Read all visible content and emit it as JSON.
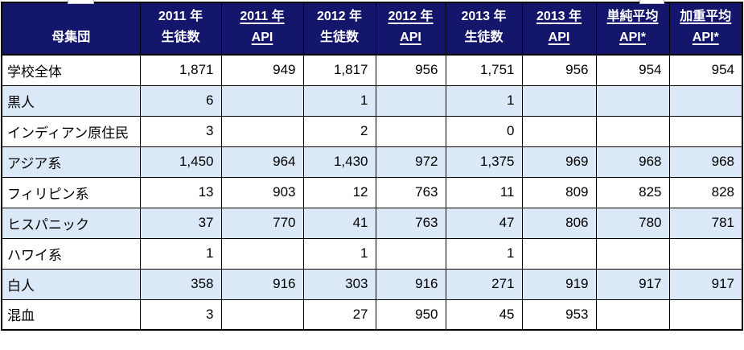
{
  "table": {
    "colors": {
      "header_bg": "#14166B",
      "header_text": "#FFFFFF",
      "shaded_row_bg": "#DBE8F7",
      "border": "#000000",
      "body_text": "#000000"
    },
    "columns": [
      {
        "id": "group",
        "label_lines": [
          "母集団"
        ],
        "underline": false
      },
      {
        "id": "students-2011",
        "label_lines": [
          "2011 年",
          "生徒数"
        ],
        "underline": false
      },
      {
        "id": "api-2011",
        "label_lines": [
          "2011 年",
          "API"
        ],
        "underline": true
      },
      {
        "id": "students-2012",
        "label_lines": [
          "2012 年",
          "生徒数"
        ],
        "underline": false
      },
      {
        "id": "api-2012",
        "label_lines": [
          "2012 年",
          "API"
        ],
        "underline": true
      },
      {
        "id": "students-2013",
        "label_lines": [
          "2013 年",
          "生徒数"
        ],
        "underline": false
      },
      {
        "id": "api-2013",
        "label_lines": [
          "2013 年",
          "API"
        ],
        "underline": true
      },
      {
        "id": "api-simple-avg",
        "label_lines": [
          "単純平均",
          "API*"
        ],
        "underline": true
      },
      {
        "id": "api-weighted-avg",
        "label_lines": [
          "加重平均",
          "API*"
        ],
        "underline": true
      }
    ],
    "rows": [
      {
        "group": "学校全体",
        "shaded": false,
        "values": [
          "1,871",
          "949",
          "1,817",
          "956",
          "1,751",
          "956",
          "954",
          "954"
        ]
      },
      {
        "group": "黒人",
        "shaded": true,
        "values": [
          "6",
          "",
          "1",
          "",
          "1",
          "",
          "",
          ""
        ]
      },
      {
        "group": "インディアン原住民",
        "shaded": false,
        "values": [
          "3",
          "",
          "2",
          "",
          "0",
          "",
          "",
          ""
        ]
      },
      {
        "group": "アジア系",
        "shaded": true,
        "values": [
          "1,450",
          "964",
          "1,430",
          "972",
          "1,375",
          "969",
          "968",
          "968"
        ]
      },
      {
        "group": "フィリピン系",
        "shaded": false,
        "values": [
          "13",
          "903",
          "12",
          "763",
          "11",
          "809",
          "825",
          "828"
        ]
      },
      {
        "group": "ヒスパニック",
        "shaded": true,
        "values": [
          "37",
          "770",
          "41",
          "763",
          "47",
          "806",
          "780",
          "781"
        ]
      },
      {
        "group": "ハワイ系",
        "shaded": false,
        "values": [
          "1",
          "",
          "1",
          "",
          "1",
          "",
          "",
          ""
        ]
      },
      {
        "group": "白人",
        "shaded": true,
        "values": [
          "358",
          "916",
          "303",
          "916",
          "271",
          "919",
          "917",
          "917"
        ]
      },
      {
        "group": "混血",
        "shaded": false,
        "values": [
          "3",
          "",
          "27",
          "950",
          "45",
          "953",
          "",
          ""
        ]
      }
    ]
  }
}
